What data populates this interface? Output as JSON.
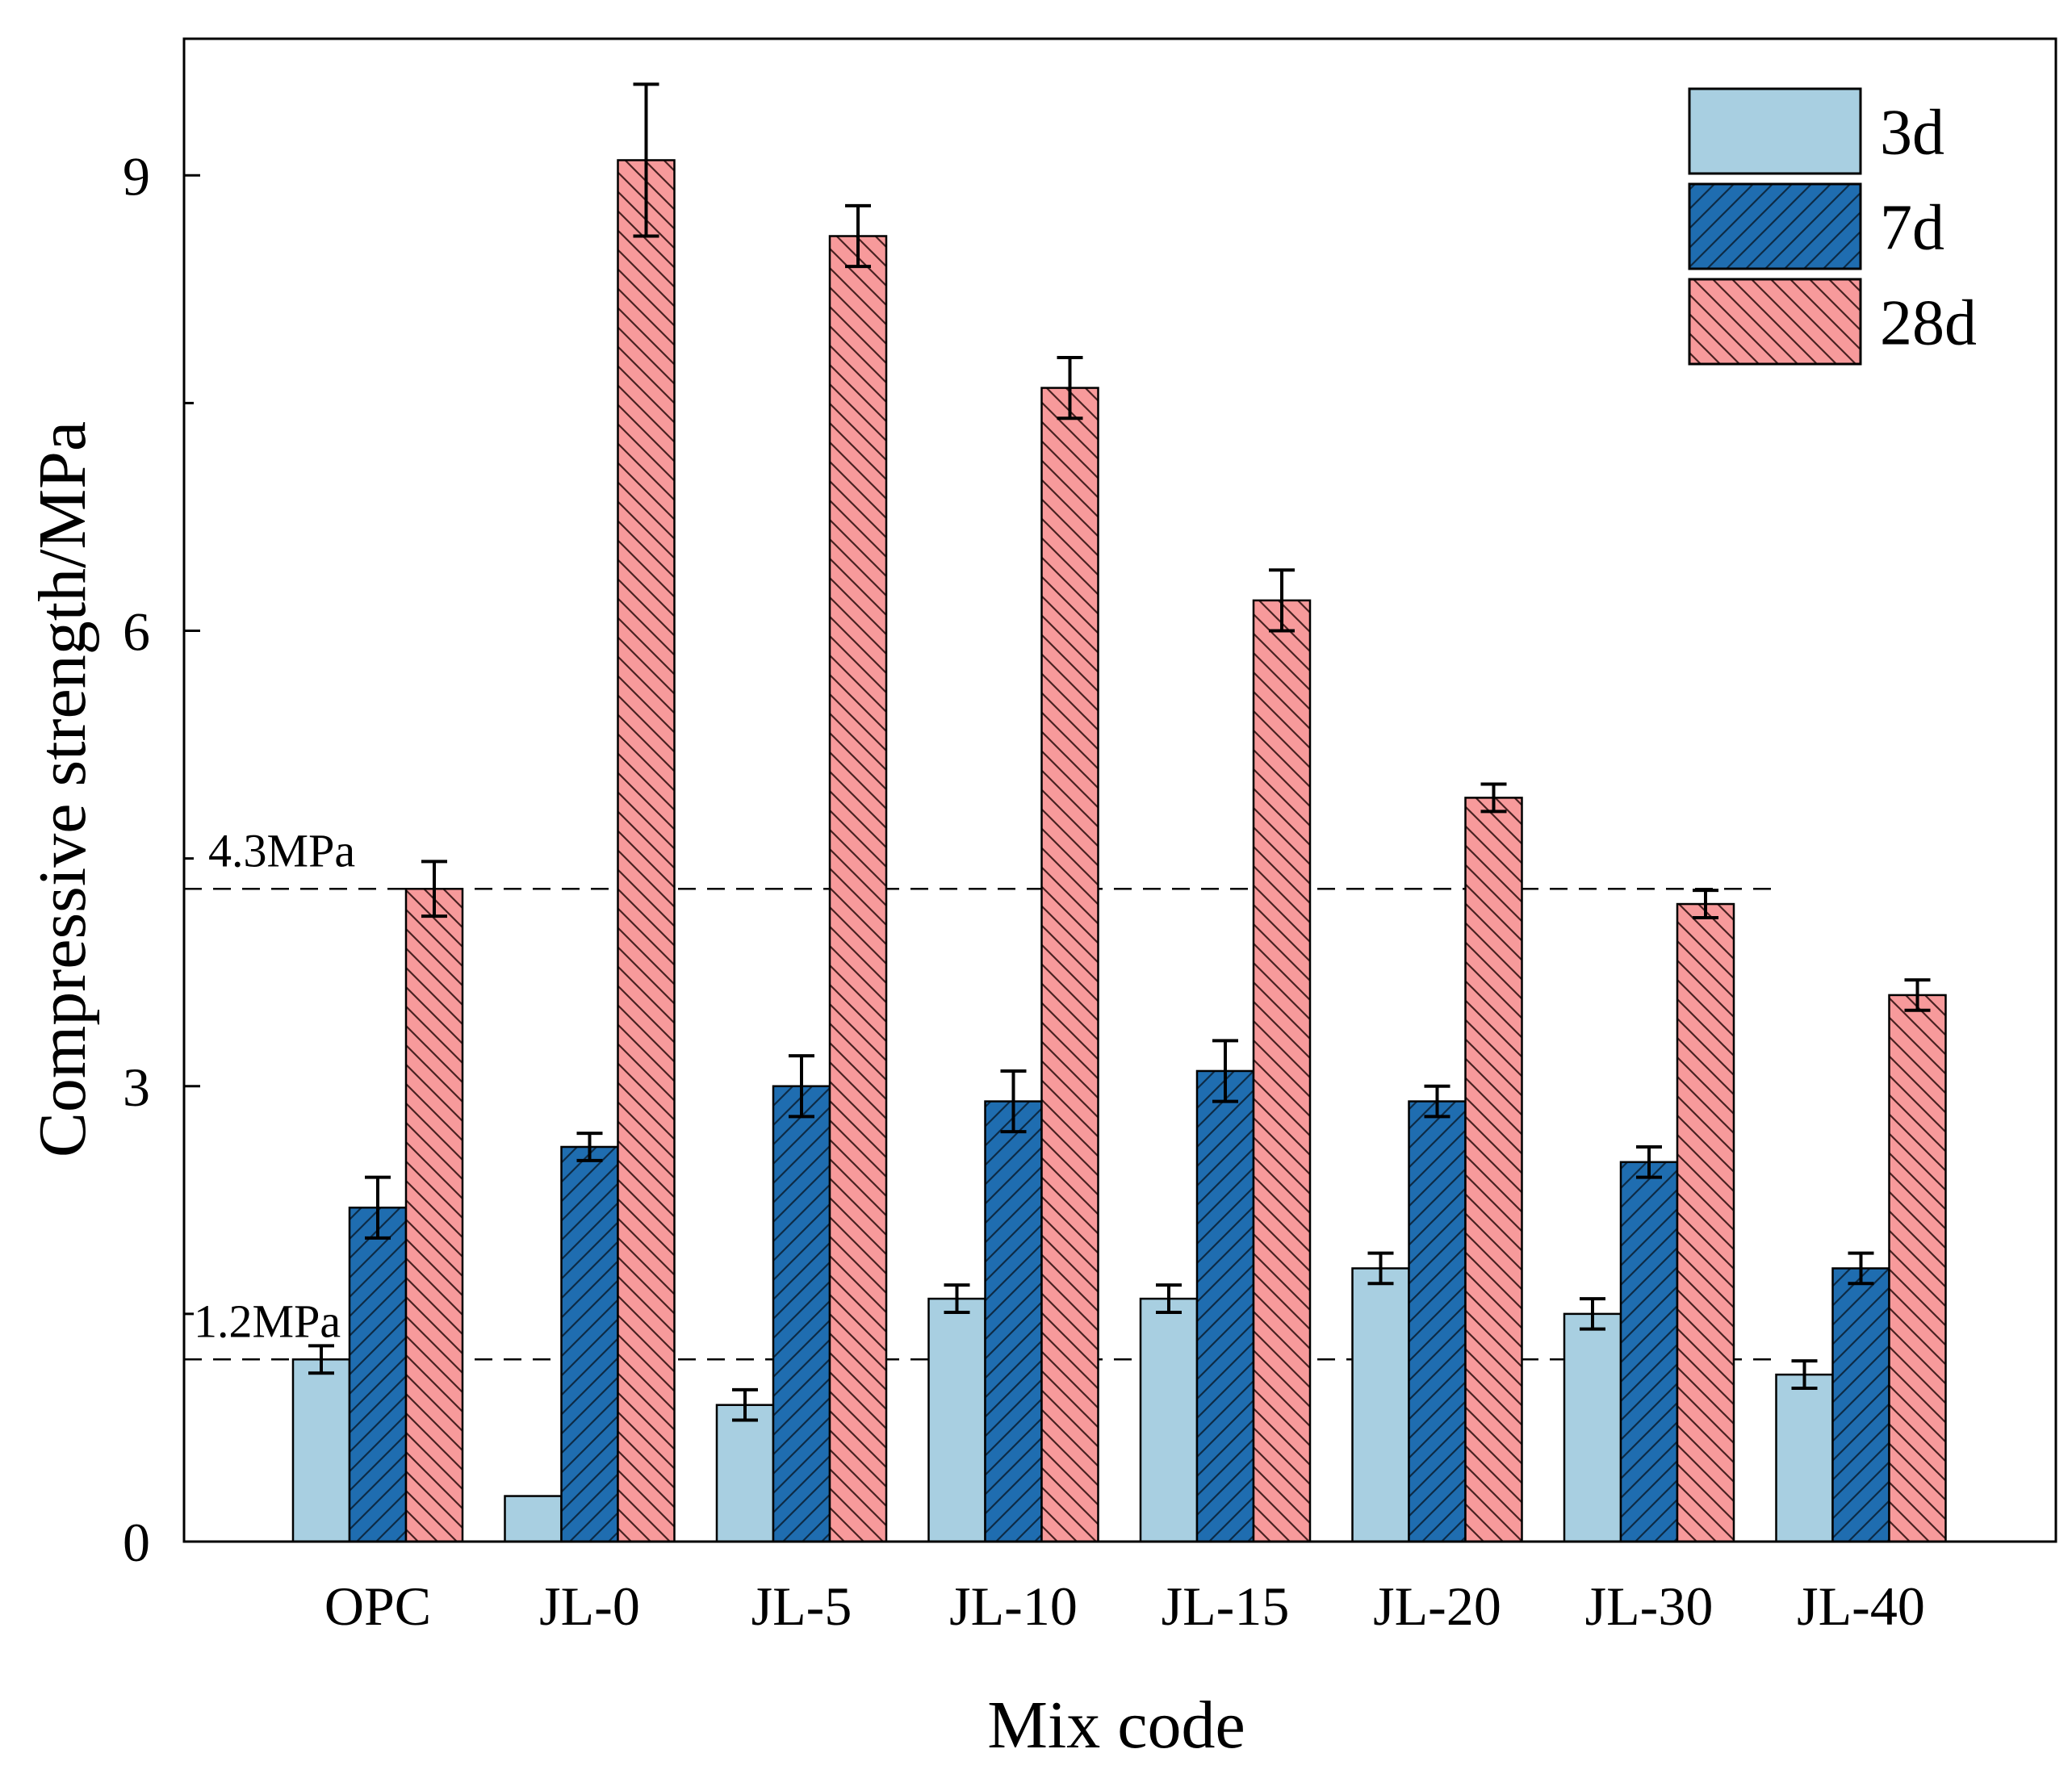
{
  "chart_data": {
    "type": "bar",
    "title": "",
    "xlabel": "Mix code",
    "ylabel": "Compressive strength/MPa",
    "categories": [
      "OPC",
      "JL-0",
      "JL-5",
      "JL-10",
      "JL-15",
      "JL-20",
      "JL-30",
      "JL-40"
    ],
    "ylim": [
      0,
      9.9
    ],
    "yticks": [
      0,
      3,
      6,
      9
    ],
    "grid": false,
    "legend_position": "top-right",
    "series": [
      {
        "name": "3d",
        "color": "#a8cfe1",
        "pattern": "none",
        "values": [
          1.2,
          0.3,
          0.9,
          1.6,
          1.6,
          1.8,
          1.5,
          1.1
        ],
        "errors": [
          0.09,
          0.0,
          0.1,
          0.09,
          0.09,
          0.1,
          0.1,
          0.09
        ]
      },
      {
        "name": "7d",
        "color": "#1f6db0",
        "pattern": "forward-diagonal",
        "values": [
          2.2,
          2.6,
          3.0,
          2.9,
          3.1,
          2.9,
          2.5,
          1.8
        ],
        "errors": [
          0.2,
          0.09,
          0.2,
          0.2,
          0.2,
          0.1,
          0.1,
          0.1
        ]
      },
      {
        "name": "28d",
        "color": "#f79a9b",
        "pattern": "backward-diagonal",
        "values": [
          4.3,
          9.1,
          8.6,
          7.6,
          6.2,
          4.9,
          4.2,
          3.6
        ],
        "errors": [
          0.18,
          0.5,
          0.2,
          0.2,
          0.2,
          0.09,
          0.09,
          0.1
        ]
      }
    ],
    "reference_lines": [
      {
        "value": 4.3,
        "label": "4.3MPa",
        "style": "dashed"
      },
      {
        "value": 1.2,
        "label": "1.2MPa",
        "style": "dashed"
      }
    ]
  }
}
